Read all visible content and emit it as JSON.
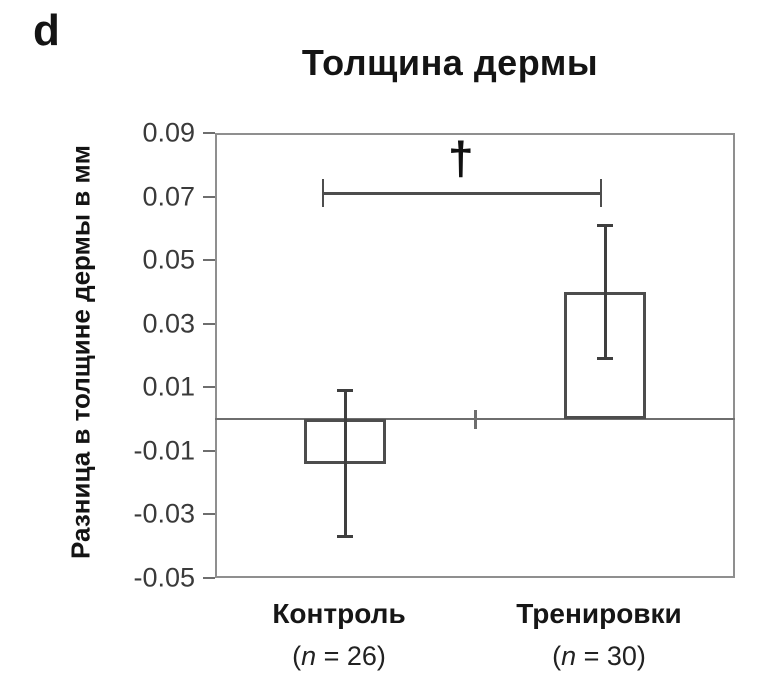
{
  "figure": {
    "panel_label": "d"
  },
  "chart_data": {
    "type": "bar",
    "title": "Толщина дермы",
    "ylabel": "Разница в толщине дермы в мм",
    "xlabel": "",
    "ylim": [
      -0.05,
      0.09
    ],
    "yticks": [
      0.09,
      0.07,
      0.05,
      0.03,
      0.01,
      -0.01,
      -0.03,
      -0.05
    ],
    "grid": false,
    "legend": null,
    "categories": [
      "Контроль",
      "Тренировки"
    ],
    "category_sublabels": [
      "(n = 26)",
      "(n = 30)"
    ],
    "values": [
      -0.014,
      0.04
    ],
    "error_low": [
      -0.037,
      0.019
    ],
    "error_high": [
      0.009,
      0.061
    ],
    "significance": {
      "symbol": "†",
      "between": [
        "Контроль",
        "Тренировки"
      ],
      "bar_y": 0.071
    },
    "colors": {
      "frame": "#8f8f8f",
      "axis_line": "#6e6e6e",
      "bar_outline": "#4d4d4d",
      "error_line": "#3f3f3f",
      "title_text": "#141414",
      "tick_text": "#3a3a3a"
    }
  }
}
